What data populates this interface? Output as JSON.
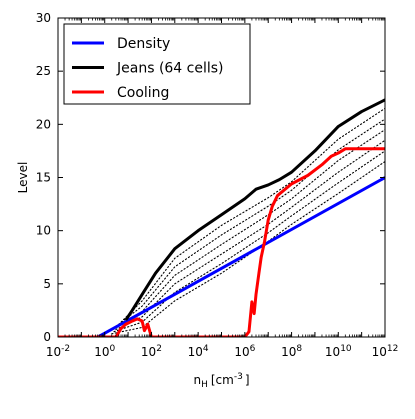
{
  "chart_data": {
    "type": "line",
    "x_scale": "log",
    "xlim": [
      0.01,
      1000000000000
    ],
    "ylim": [
      0,
      30
    ],
    "xlabel_main": "n",
    "xlabel_sub": "H",
    "xlabel_unit": "[cm",
    "xlabel_exp": "-3",
    "xlabel_close": "]",
    "ylabel": "Level",
    "grid": false,
    "legend_position": "top-left",
    "x_ticks": [
      {
        "value": 0.01,
        "base": "10",
        "exp": "-2"
      },
      {
        "value": 1,
        "base": "10",
        "exp": "0"
      },
      {
        "value": 100,
        "base": "10",
        "exp": "2"
      },
      {
        "value": 10000,
        "base": "10",
        "exp": "4"
      },
      {
        "value": 1000000,
        "base": "10",
        "exp": "6"
      },
      {
        "value": 100000000,
        "base": "10",
        "exp": "8"
      },
      {
        "value": 10000000000,
        "base": "10",
        "exp": "10"
      },
      {
        "value": 1000000000000,
        "base": "10",
        "exp": "12"
      }
    ],
    "y_ticks": [
      0,
      5,
      10,
      15,
      20,
      25,
      30
    ],
    "series": [
      {
        "name": "Density",
        "color": "#0000ff",
        "points": [
          [
            0.5,
            0
          ],
          [
            0.75,
            0.2
          ],
          [
            1000000000000,
            15
          ]
        ]
      },
      {
        "name": "Jeans (64 cells)",
        "color": "#000000",
        "points": [
          [
            8,
            1.6
          ],
          [
            15,
            2.5
          ],
          [
            40,
            4
          ],
          [
            150,
            6
          ],
          [
            1000,
            8.3
          ],
          [
            10000,
            10
          ],
          [
            100000,
            11.5
          ],
          [
            1000000,
            13
          ],
          [
            3000000,
            13.9
          ],
          [
            10000000,
            14.3
          ],
          [
            30000000,
            14.8
          ],
          [
            100000000,
            15.5
          ],
          [
            1000000000,
            17.5
          ],
          [
            10000000000,
            19.8
          ],
          [
            100000000000,
            21.2
          ],
          [
            1000000000000,
            22.3
          ]
        ]
      },
      {
        "name": "Cooling",
        "color": "#ff0000",
        "points": [
          [
            0.01,
            0
          ],
          [
            3,
            0
          ],
          [
            5,
            0.8
          ],
          [
            8,
            1.2
          ],
          [
            15,
            1.5
          ],
          [
            25,
            1.7
          ],
          [
            40,
            1.5
          ],
          [
            50,
            0.6
          ],
          [
            70,
            1.2
          ],
          [
            100,
            0
          ],
          [
            1000000,
            0
          ],
          [
            1500000,
            0.5
          ],
          [
            2000000,
            3.3
          ],
          [
            2500000,
            2.2
          ],
          [
            3000000,
            4
          ],
          [
            4000000,
            6
          ],
          [
            5000000,
            7.5
          ],
          [
            7000000,
            9
          ],
          [
            10000000,
            11
          ],
          [
            15000000,
            12.3
          ],
          [
            25000000,
            13.3
          ],
          [
            100000000,
            14.4
          ],
          [
            500000000,
            15.2
          ],
          [
            2000000000,
            16.2
          ],
          [
            5000000000,
            17
          ],
          [
            10000000000,
            17.3
          ],
          [
            20000000000,
            17.7
          ],
          [
            1000000000000,
            17.7
          ]
        ]
      }
    ],
    "dotted_curves": [
      {
        "points": [
          [
            5,
            1.4
          ],
          [
            40,
            3.4
          ],
          [
            1000,
            7.4
          ],
          [
            100000,
            10.5
          ],
          [
            10000000,
            13.1
          ],
          [
            100000000,
            14.6
          ],
          [
            10000000000,
            18.6
          ],
          [
            1000000000000,
            21.5
          ]
        ]
      },
      {
        "points": [
          [
            4,
            1.2
          ],
          [
            40,
            2.9
          ],
          [
            1000,
            6.6
          ],
          [
            100000,
            9.6
          ],
          [
            10000000,
            12.3
          ],
          [
            100000000,
            13.8
          ],
          [
            10000000000,
            17.6
          ],
          [
            1000000000000,
            20.5
          ]
        ]
      },
      {
        "points": [
          [
            3,
            1
          ],
          [
            40,
            2.4
          ],
          [
            1000,
            5.8
          ],
          [
            100000,
            8.7
          ],
          [
            10000000,
            11.5
          ],
          [
            100000000,
            13
          ],
          [
            10000000000,
            16.6
          ],
          [
            1000000000000,
            19.5
          ]
        ]
      },
      {
        "points": [
          [
            3,
            0.7
          ],
          [
            40,
            1.9
          ],
          [
            1000,
            5
          ],
          [
            100000,
            7.8
          ],
          [
            10000000,
            10.6
          ],
          [
            100000000,
            12.2
          ],
          [
            10000000000,
            15.5
          ],
          [
            1000000000000,
            18.5
          ]
        ]
      },
      {
        "points": [
          [
            2.5,
            0.5
          ],
          [
            40,
            1.4
          ],
          [
            1000,
            4.2
          ],
          [
            100000,
            6.9
          ],
          [
            10000000,
            9.8
          ],
          [
            100000000,
            11.4
          ],
          [
            10000000000,
            14.5
          ],
          [
            1000000000000,
            17.5
          ]
        ]
      },
      {
        "points": [
          [
            2,
            0.3
          ],
          [
            40,
            0.9
          ],
          [
            1000,
            3.4
          ],
          [
            100000,
            6
          ],
          [
            10000000,
            9
          ],
          [
            100000000,
            10.6
          ],
          [
            10000000000,
            13.5
          ],
          [
            1000000000000,
            16.5
          ]
        ]
      }
    ]
  }
}
